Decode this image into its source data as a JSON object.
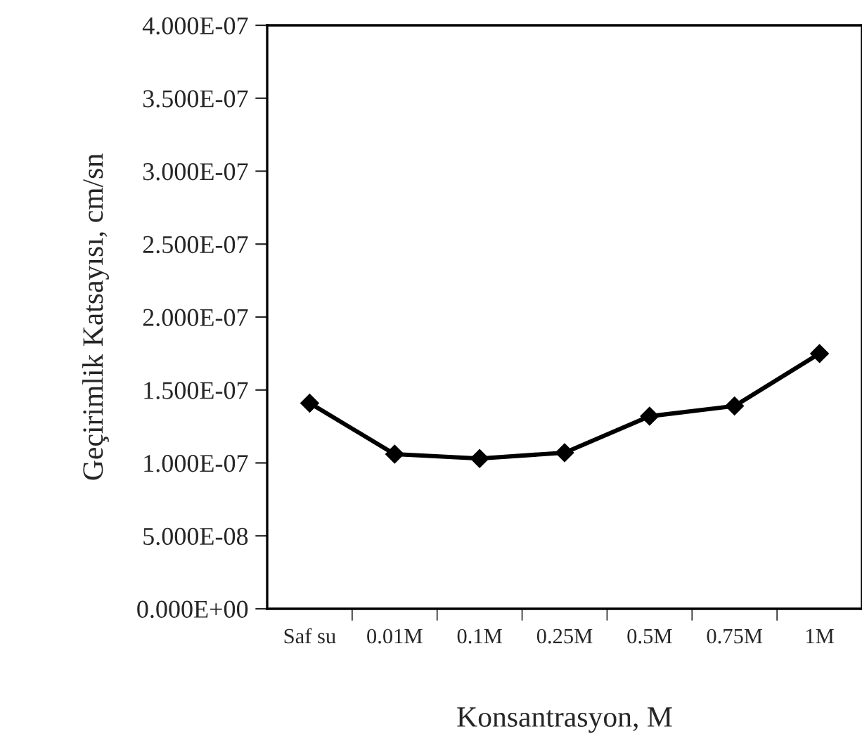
{
  "chart_data": {
    "type": "line",
    "xlabel": "Konsantrasyon, M",
    "ylabel": "Geçirimlik Katsayısı, cm/sn",
    "categories": [
      "Saf su",
      "0.01M",
      "0.1M",
      "0.25M",
      "0.5M",
      "0.75M",
      "1M"
    ],
    "series": [
      {
        "color": "#000000",
        "values": [
          1.41e-07,
          1.06e-07,
          1.03e-07,
          1.07e-07,
          1.32e-07,
          1.39e-07,
          1.75e-07
        ]
      }
    ],
    "ylim": [
      0,
      4e-07
    ],
    "yticks": [
      {
        "value": 0,
        "label": "0.000E+00"
      },
      {
        "value": 5e-08,
        "label": "5.000E-08"
      },
      {
        "value": 1e-07,
        "label": "1.000E-07"
      },
      {
        "value": 1.5e-07,
        "label": "1.500E-07"
      },
      {
        "value": 2e-07,
        "label": "2.000E-07"
      },
      {
        "value": 2.5e-07,
        "label": "2.500E-07"
      },
      {
        "value": 3e-07,
        "label": "3.000E-07"
      },
      {
        "value": 3.5e-07,
        "label": "3.500E-07"
      },
      {
        "value": 4e-07,
        "label": "4.000E-07"
      }
    ],
    "marker": "diamond",
    "line_style": "solid",
    "grid": false,
    "legend": false
  }
}
